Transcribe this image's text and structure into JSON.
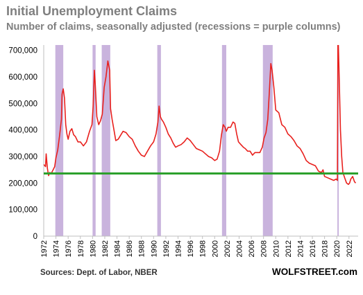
{
  "title": "Initial Unemployment Claims",
  "subtitle": "Number of claims, seasonally adjusted (recessions = purple columns)",
  "source": "Sources: Dept. of Labor, NBER",
  "brand": "WOLFSTREET.com",
  "chart_data": {
    "type": "line",
    "title": "Initial Unemployment Claims",
    "subtitle": "Number of claims, seasonally adjusted (recessions = purple columns)",
    "xlim": [
      1972,
      2023.5
    ],
    "ylim": [
      0,
      720000
    ],
    "x_ticks": [
      1972,
      1974,
      1976,
      1978,
      1980,
      1982,
      1984,
      1986,
      1988,
      1990,
      1992,
      1994,
      1996,
      1998,
      2000,
      2002,
      2004,
      2006,
      2008,
      2010,
      2012,
      2014,
      2016,
      2018,
      2020,
      2022
    ],
    "y_ticks": [
      0,
      100000,
      200000,
      300000,
      400000,
      500000,
      600000,
      700000
    ],
    "y_tick_labels": [
      "0",
      "100,000",
      "200,000",
      "300,000",
      "400,000",
      "500,000",
      "600,000",
      "700,000"
    ],
    "recessions": [
      [
        1973.9,
        1975.2
      ],
      [
        1980.0,
        1980.5
      ],
      [
        1981.5,
        1982.9
      ],
      [
        1990.6,
        1991.2
      ],
      [
        2001.2,
        2001.9
      ],
      [
        2007.9,
        2009.5
      ],
      [
        2020.1,
        2020.3
      ]
    ],
    "reference_line": {
      "value": 236000,
      "color": "#2ca02c"
    },
    "colors": {
      "line": "#e8201d",
      "recession": "#c9b3dd",
      "axis": "#bfbfbf"
    },
    "series": [
      {
        "x": [
          1972.0,
          1972.3,
          1972.4,
          1972.6,
          1972.8,
          1973.0,
          1973.2,
          1973.5,
          1973.8,
          1974.0,
          1974.3,
          1974.6,
          1974.9,
          1975.0,
          1975.2,
          1975.4,
          1975.6,
          1975.8,
          1976.0,
          1976.3,
          1976.6,
          1976.9,
          1977.2,
          1977.6,
          1978.0,
          1978.5,
          1979.0,
          1979.5,
          1979.9,
          1980.1,
          1980.3,
          1980.45,
          1980.7,
          1981.0,
          1981.3,
          1981.6,
          1981.9,
          1982.2,
          1982.5,
          1982.8,
          1982.95,
          1983.2,
          1983.5,
          1983.8,
          1984.2,
          1984.6,
          1985.0,
          1985.5,
          1986.0,
          1986.5,
          1987.0,
          1987.5,
          1988.0,
          1988.5,
          1989.0,
          1989.5,
          1990.0,
          1990.4,
          1990.7,
          1990.9,
          1991.1,
          1991.3,
          1991.6,
          1992.0,
          1992.4,
          1992.8,
          1993.2,
          1993.6,
          1994.0,
          1994.5,
          1995.0,
          1995.5,
          1996.0,
          1996.5,
          1997.0,
          1997.5,
          1998.0,
          1998.5,
          1999.0,
          1999.5,
          2000.0,
          2000.4,
          2000.8,
          2001.1,
          2001.4,
          2001.7,
          2001.9,
          2002.2,
          2002.6,
          2003.0,
          2003.3,
          2003.6,
          2003.9,
          2004.3,
          2004.7,
          2005.0,
          2005.4,
          2005.8,
          2006.2,
          2006.6,
          2007.0,
          2007.4,
          2007.8,
          2008.1,
          2008.4,
          2008.7,
          2008.95,
          2009.2,
          2009.4,
          2009.7,
          2010.0,
          2010.5,
          2011.0,
          2011.5,
          2012.0,
          2012.5,
          2013.0,
          2013.5,
          2014.0,
          2014.5,
          2015.0,
          2015.5,
          2016.0,
          2016.5,
          2017.0,
          2017.5,
          2017.75,
          2018.0,
          2018.5,
          2019.0,
          2019.5,
          2019.9,
          2020.1,
          2020.18,
          2020.22,
          2020.26,
          2020.4,
          2020.6,
          2020.8,
          2021.0,
          2021.3,
          2021.6,
          2021.9,
          2022.1,
          2022.3,
          2022.6,
          2022.9,
          2023.1
        ],
        "y": [
          270000,
          262000,
          310000,
          255000,
          228000,
          240000,
          235000,
          248000,
          262000,
          295000,
          325000,
          380000,
          440000,
          535000,
          555000,
          520000,
          420000,
          385000,
          365000,
          395000,
          405000,
          382000,
          375000,
          355000,
          355000,
          340000,
          355000,
          395000,
          420000,
          490000,
          625000,
          570000,
          450000,
          420000,
          435000,
          460000,
          560000,
          600000,
          660000,
          625000,
          480000,
          440000,
          400000,
          360000,
          365000,
          380000,
          395000,
          390000,
          375000,
          365000,
          340000,
          320000,
          305000,
          300000,
          320000,
          340000,
          355000,
          385000,
          430000,
          490000,
          450000,
          440000,
          430000,
          410000,
          385000,
          370000,
          350000,
          335000,
          340000,
          345000,
          355000,
          370000,
          360000,
          345000,
          330000,
          325000,
          320000,
          310000,
          300000,
          295000,
          285000,
          290000,
          320000,
          380000,
          420000,
          410000,
          395000,
          410000,
          410000,
          430000,
          425000,
          385000,
          355000,
          345000,
          335000,
          330000,
          320000,
          320000,
          305000,
          315000,
          315000,
          315000,
          335000,
          370000,
          390000,
          440000,
          540000,
          650000,
          625000,
          560000,
          475000,
          465000,
          420000,
          410000,
          385000,
          375000,
          360000,
          340000,
          330000,
          310000,
          285000,
          275000,
          270000,
          265000,
          245000,
          240000,
          250000,
          225000,
          220000,
          215000,
          210000,
          215000,
          210000,
          720000,
          720000,
          720000,
          600000,
          400000,
          300000,
          240000,
          220000,
          200000,
          195000,
          200000,
          215000,
          225000,
          205000,
          200000
        ]
      }
    ]
  }
}
